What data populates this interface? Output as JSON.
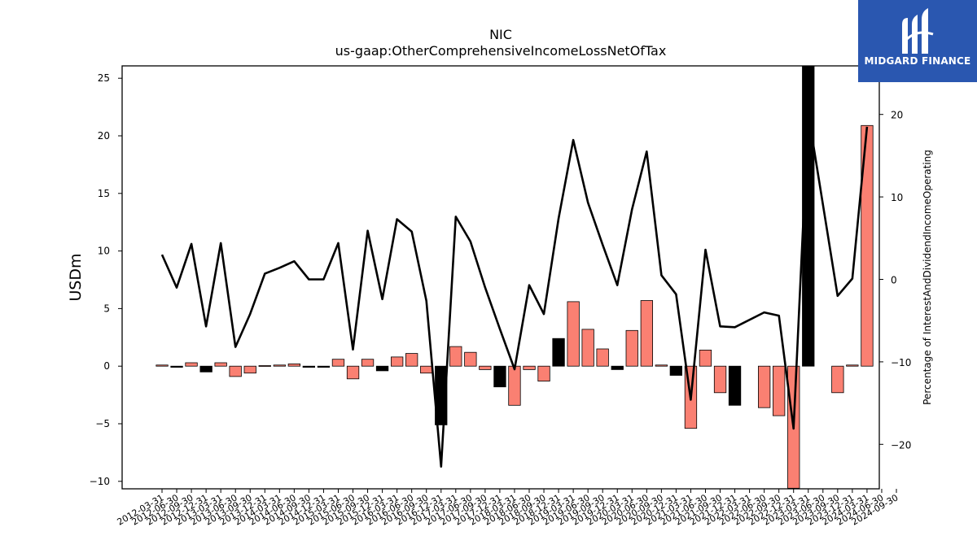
{
  "chart_data": {
    "type": "bar+line",
    "title": "NIC",
    "subtitle": "us-gaap:OtherComprehensiveIncomeLossNetOfTax",
    "ylabel_left": "USDm",
    "ylabel_right": "Percentage of InterestAndDividendIncomeOperating",
    "ylim_left": [
      -10.6,
      26.2
    ],
    "ylim_right": [
      -25.2,
      26.2
    ],
    "yticks_left": [
      -10,
      -5,
      0,
      5,
      10,
      15,
      20,
      25
    ],
    "yticks_right": [
      -20,
      -10,
      0,
      10,
      20
    ],
    "grid": false,
    "categories": [
      "2012-03-31",
      "2012-06-30",
      "2012-09-30",
      "2012-12-31",
      "2013-03-31",
      "2013-06-30",
      "2013-09-30",
      "2013-12-31",
      "2014-03-31",
      "2014-06-30",
      "2014-09-30",
      "2014-12-31",
      "2015-03-31",
      "2015-06-30",
      "2015-09-30",
      "2015-12-31",
      "2016-03-31",
      "2016-06-30",
      "2016-09-30",
      "2016-12-31",
      "2017-03-31",
      "2017-06-30",
      "2017-09-30",
      "2017-12-31",
      "2018-03-31",
      "2018-06-30",
      "2018-09-30",
      "2018-12-31",
      "2019-03-31",
      "2019-06-30",
      "2019-09-30",
      "2019-12-31",
      "2020-03-31",
      "2020-06-30",
      "2020-09-30",
      "2020-12-31",
      "2021-03-31",
      "2021-06-30",
      "2021-09-30",
      "2021-12-31",
      "2022-03-31",
      "2022-06-30",
      "2022-09-30",
      "2022-12-31",
      "2023-03-31",
      "2023-06-30",
      "2023-09-30",
      "2023-12-31",
      "2024-03-31",
      "2024-06-30",
      "2024-09-30"
    ],
    "xtick_labels": [
      "2012-03-31",
      "2012-06-30",
      "2012-09-30",
      "2012-12-31",
      "2013-03-31",
      "2013-06-30",
      "2013-09-30",
      "2013-12-31",
      "2014-03-31",
      "2014-06-30",
      "2014-09-30",
      "2014-12-31",
      "2015-03-31",
      "2015-06-30",
      "2015-09-30",
      "2015-12-31",
      "2016-03-31",
      "2016-06-30",
      "2016-09-30",
      "2016-12-31",
      "2017-03-31",
      "2017-06-30",
      "2017-09-30",
      "2017-12-31",
      "2018-03-31",
      "2018-06-30",
      "2018-09-30",
      "2018-12-31",
      "2019-03-31",
      "2019-06-30",
      "2019-09-30",
      "2019-12-31",
      "2020-03-31",
      "2020-06-30",
      "2020-09-30",
      "2020-12-31",
      "2021-03-31",
      "2021-06-30",
      "2021-09-30",
      "2021-12-31",
      "2022-03-31",
      "2022-06-30",
      "2022-09-30",
      "2022-12-31",
      "2023-03-31",
      "2023-06-30",
      "2023-09-30",
      "2023-12-31",
      "2024-03-31",
      "2024-06-30",
      "2024-09-30"
    ],
    "bar_positions": [
      0,
      1,
      2,
      3,
      4,
      5,
      6,
      7,
      8,
      9,
      10,
      11,
      12,
      13,
      14,
      15,
      16,
      17,
      18,
      19,
      20,
      21,
      22,
      23,
      24,
      25,
      26,
      27,
      28,
      29,
      30,
      31,
      32,
      33,
      34,
      35,
      36,
      37,
      38,
      39,
      40,
      41,
      42,
      43,
      44,
      45,
      46,
      47,
      48,
      49
    ],
    "bars": [
      {
        "value": 0.1,
        "color": "salmon"
      },
      {
        "value": -0.1,
        "color": "black"
      },
      {
        "value": 0.3,
        "color": "salmon"
      },
      {
        "value": -0.5,
        "color": "black"
      },
      {
        "value": 0.3,
        "color": "salmon"
      },
      {
        "value": -0.9,
        "color": "salmon"
      },
      {
        "value": -0.6,
        "color": "salmon"
      },
      {
        "value": 0.05,
        "color": "salmon"
      },
      {
        "value": 0.1,
        "color": "salmon"
      },
      {
        "value": 0.2,
        "color": "salmon"
      },
      {
        "value": -0.1,
        "color": "black"
      },
      {
        "value": -0.1,
        "color": "black"
      },
      {
        "value": 0.6,
        "color": "salmon"
      },
      {
        "value": -1.1,
        "color": "salmon"
      },
      {
        "value": 0.6,
        "color": "salmon"
      },
      {
        "value": -0.4,
        "color": "black"
      },
      {
        "value": 0.8,
        "color": "salmon"
      },
      {
        "value": 1.1,
        "color": "salmon"
      },
      {
        "value": -0.6,
        "color": "salmon"
      },
      {
        "value": -5.1,
        "color": "black"
      },
      {
        "value": 1.7,
        "color": "salmon"
      },
      {
        "value": 1.2,
        "color": "salmon"
      },
      {
        "value": -0.3,
        "color": "salmon"
      },
      {
        "value": -1.8,
        "color": "black"
      },
      {
        "value": -3.4,
        "color": "salmon"
      },
      {
        "value": -0.3,
        "color": "salmon"
      },
      {
        "value": -1.3,
        "color": "salmon"
      },
      {
        "value": 2.4,
        "color": "black"
      },
      {
        "value": 5.6,
        "color": "salmon"
      },
      {
        "value": 3.2,
        "color": "salmon"
      },
      {
        "value": 1.5,
        "color": "salmon"
      },
      {
        "value": -0.3,
        "color": "black"
      },
      {
        "value": 3.1,
        "color": "salmon"
      },
      {
        "value": 5.7,
        "color": "salmon"
      },
      {
        "value": 0.1,
        "color": "salmon"
      },
      {
        "value": -0.8,
        "color": "black"
      },
      {
        "value": -5.4,
        "color": "salmon"
      },
      {
        "value": 1.4,
        "color": "salmon"
      },
      {
        "value": -2.3,
        "color": "salmon"
      },
      {
        "value": -3.4,
        "color": "black"
      },
      {
        "value": -3.6,
        "color": "salmon"
      },
      {
        "value": -4.3,
        "color": "salmon"
      },
      {
        "value": -10.6,
        "color": "salmon"
      },
      {
        "value": 26.2,
        "color": "black"
      },
      {
        "value": -2.3,
        "color": "salmon"
      },
      {
        "value": 0.1,
        "color": "salmon"
      },
      {
        "value": 20.9,
        "color": "salmon"
      }
    ],
    "bar_indices": [
      0,
      1,
      2,
      3,
      4,
      5,
      6,
      7,
      8,
      9,
      10,
      11,
      12,
      13,
      14,
      15,
      16,
      17,
      18,
      19,
      20,
      21,
      22,
      23,
      24,
      25,
      26,
      27,
      28,
      29,
      30,
      31,
      32,
      33,
      34,
      35,
      36,
      37,
      38,
      39,
      41,
      42,
      43,
      44,
      46,
      47,
      48
    ],
    "line_series": {
      "name": "",
      "axis": "right",
      "values": [
        3.0,
        -1.0,
        4.3,
        -5.7,
        4.4,
        -8.2,
        -4.2,
        0.7,
        1.4,
        2.2,
        0.0,
        0.0,
        4.4,
        -8.5,
        5.9,
        -2.4,
        7.3,
        5.8,
        -2.6,
        -22.7,
        7.6,
        4.6,
        -1.0,
        -6.0,
        -10.9,
        -0.7,
        -4.2,
        7.4,
        16.9,
        9.3,
        4.2,
        -0.7,
        8.5,
        15.5,
        0.5,
        -1.8,
        -14.6,
        3.6,
        -5.7,
        -5.8,
        -4.0,
        -4.4,
        -18.1,
        20.1,
        -2.0,
        0.1,
        18.5
      ],
      "indices": [
        0,
        1,
        2,
        3,
        4,
        5,
        6,
        7,
        8,
        9,
        10,
        11,
        12,
        13,
        14,
        15,
        16,
        17,
        18,
        19,
        20,
        21,
        22,
        23,
        24,
        25,
        26,
        27,
        28,
        29,
        30,
        31,
        32,
        33,
        34,
        35,
        36,
        37,
        38,
        39,
        41,
        42,
        43,
        44,
        46,
        47,
        48
      ],
      "color": "#000000"
    },
    "colors": {
      "salmon": "#fa8072",
      "black": "#000000",
      "axis": "#000000"
    }
  },
  "logo": {
    "text": "MIDGARD FINANCE",
    "background": "#2a57b0",
    "icon": "midgard-m-logo-icon"
  }
}
